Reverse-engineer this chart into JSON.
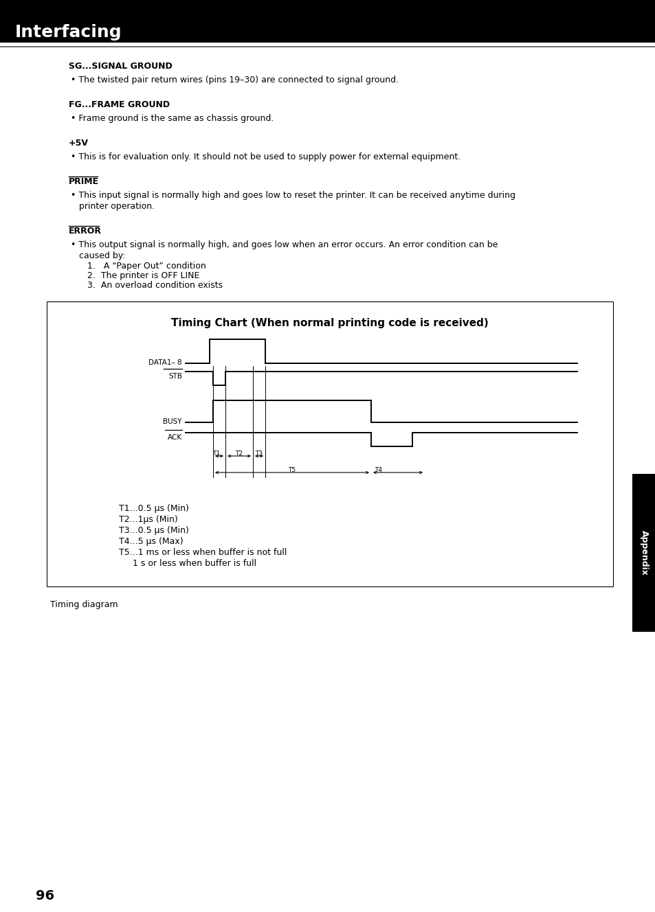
{
  "title_bar_text": "Interfacing",
  "title_bar_bg": "#000000",
  "title_bar_text_color": "#ffffff",
  "page_bg": "#ffffff",
  "timing_chart_title": "Timing Chart (When normal printing code is received)",
  "timing_legend": [
    "T1...0.5 μs (Min)",
    "T2...1μs (Min)",
    "T3...0.5 μs (Min)",
    "T4...5 μs (Max)",
    "T5...1 ms or less when buffer is not full",
    "     1 s or less when buffer is full"
  ],
  "caption": "Timing diagram",
  "page_number": "96",
  "appendix_label": "Appendix"
}
